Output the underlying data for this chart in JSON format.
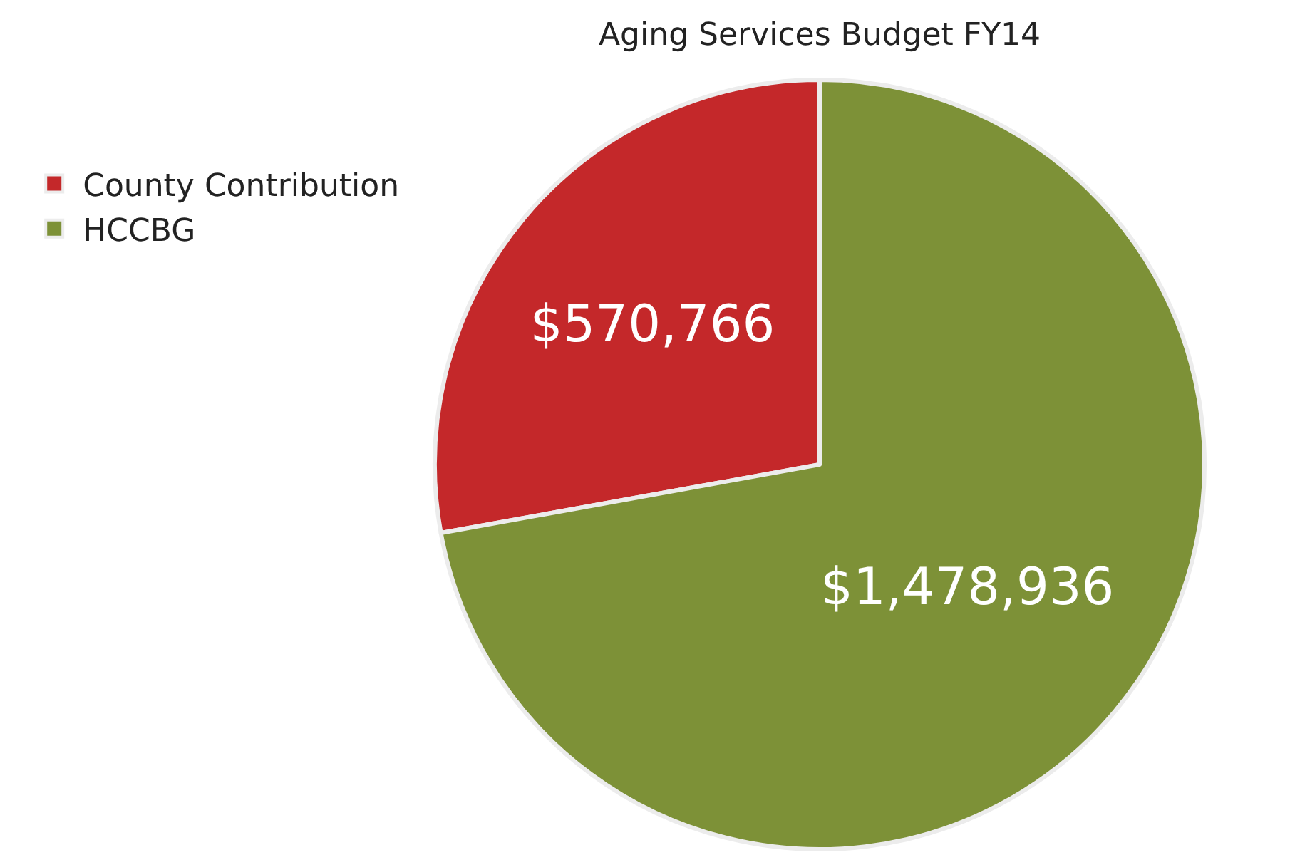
{
  "chart_data": {
    "type": "pie",
    "title": "Aging Services Budget FY14",
    "categories": [
      "County Contribution",
      "HCCBG"
    ],
    "values": [
      570766,
      1478936
    ],
    "value_labels": [
      "$570,766",
      "$1,478,936"
    ],
    "colors": [
      "#c4282a",
      "#7d9137"
    ],
    "legend": "top left"
  }
}
